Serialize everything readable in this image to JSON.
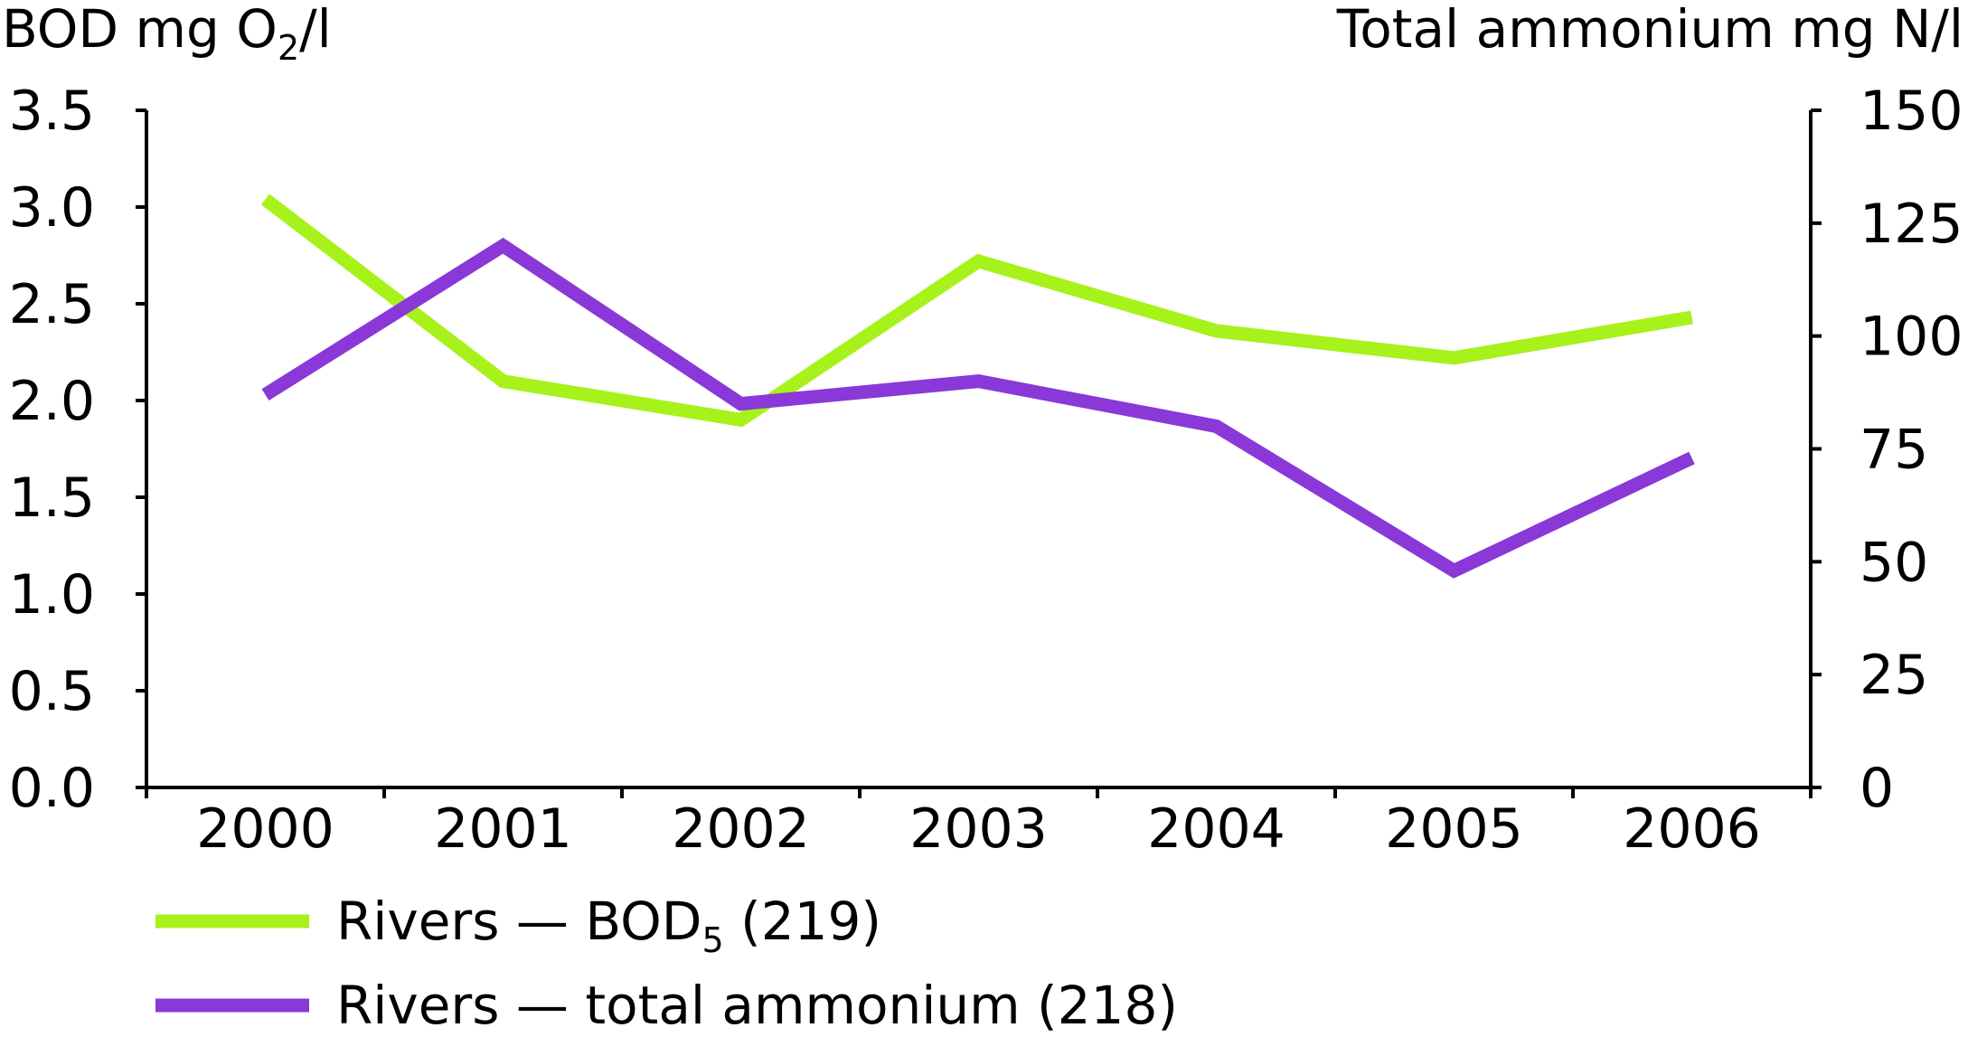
{
  "chart_data": {
    "type": "line",
    "categories": [
      "2000",
      "2001",
      "2002",
      "2003",
      "2004",
      "2005",
      "2006"
    ],
    "series": [
      {
        "name": "Rivers — BOD5 (219)",
        "axis": "left",
        "color": "#a6f21a",
        "values": [
          3.04,
          2.1,
          1.9,
          2.72,
          2.36,
          2.22,
          2.43
        ]
      },
      {
        "name": "Rivers — total ammonium (218)",
        "axis": "right",
        "color": "#8a38d8",
        "values": [
          87,
          120,
          85,
          90,
          80,
          48,
          73
        ]
      }
    ],
    "left_axis": {
      "label_main": "BOD mg O",
      "label_sub": "2",
      "label_tail": "/l",
      "ylim": [
        0,
        3.5
      ],
      "ticks": [
        "0.0",
        "0.5",
        "1.0",
        "1.5",
        "2.0",
        "2.5",
        "3.0",
        "3.5"
      ]
    },
    "right_axis": {
      "label": "Total ammonium mg N/l",
      "ylim": [
        0,
        150
      ],
      "ticks": [
        "0",
        "25",
        "50",
        "75",
        "100",
        "125",
        "150"
      ]
    },
    "legend": {
      "placement": "bottom-left",
      "items": [
        {
          "main": "Rivers — BOD",
          "sub": "5",
          "tail": " (219)",
          "color": "#a6f21a"
        },
        {
          "main": "Rivers — total ammonium (218)",
          "sub": "",
          "tail": "",
          "color": "#8a38d8"
        }
      ]
    },
    "grid": false
  }
}
